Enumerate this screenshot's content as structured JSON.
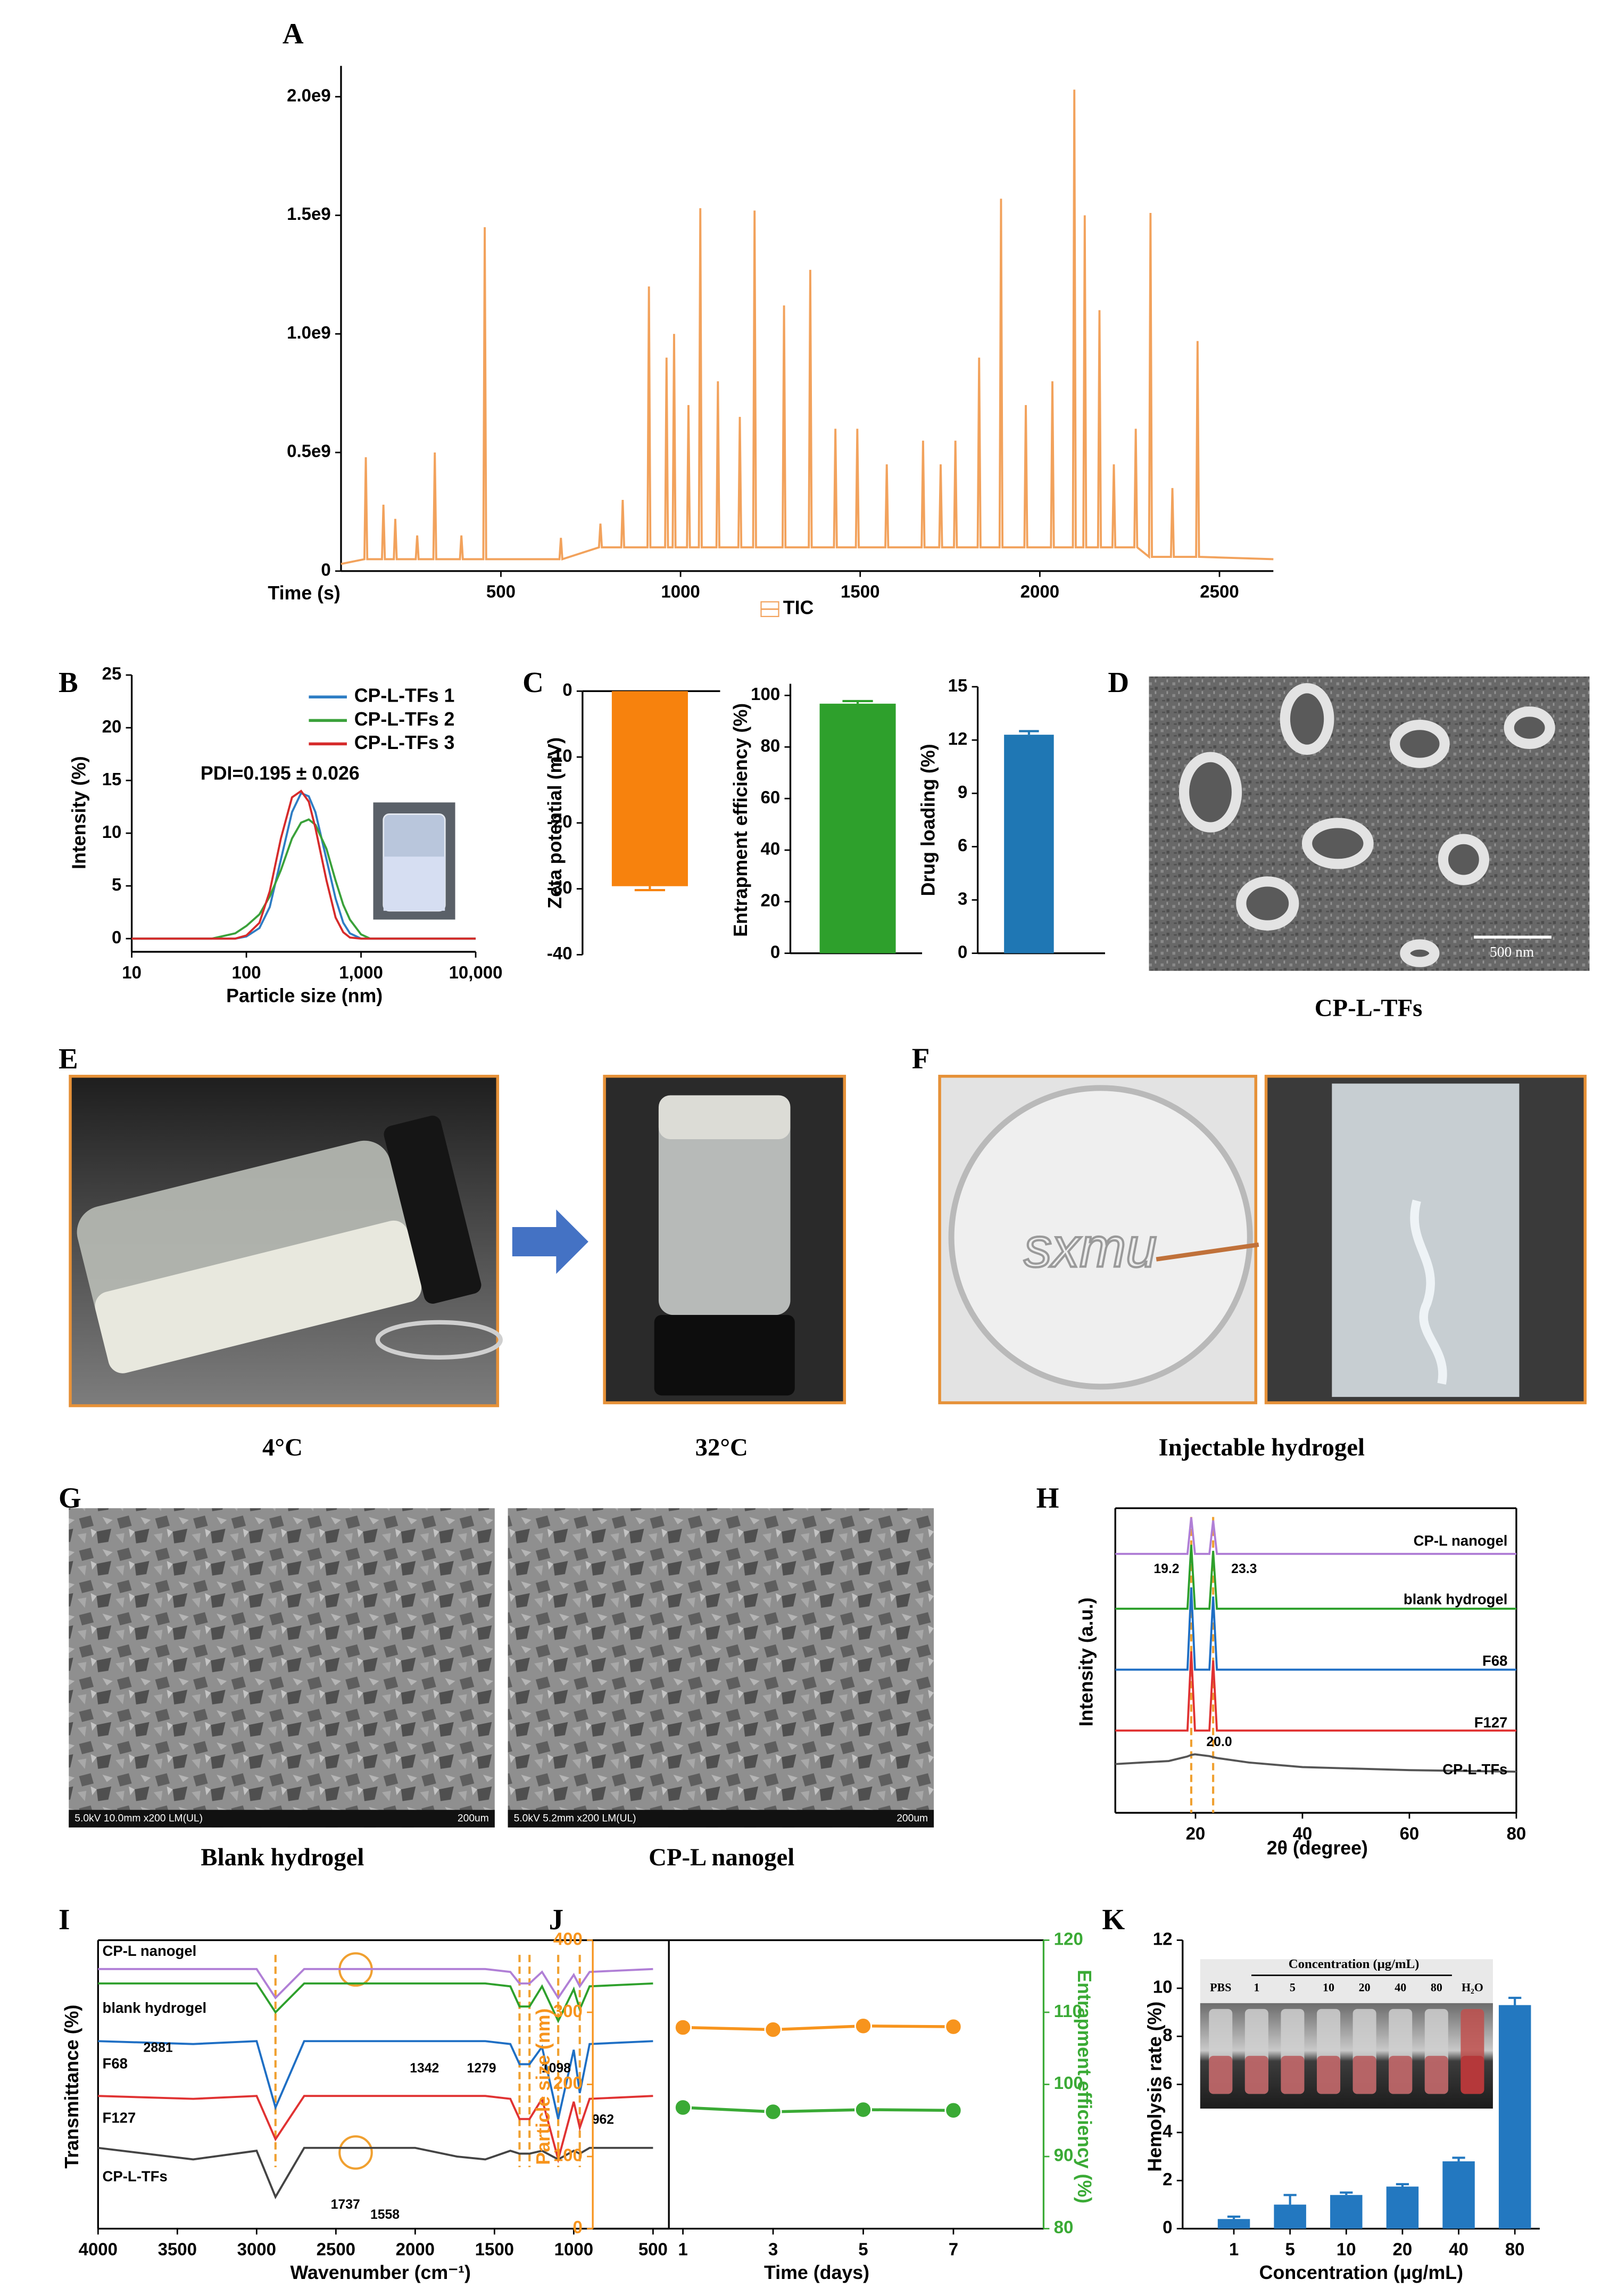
{
  "chart_data": [
    {
      "type": "line",
      "panel": "A",
      "x_label": "Time (s)",
      "legend": "lower center",
      "xlim": [
        55,
        2650
      ],
      "xticks": [
        500,
        1000,
        1500,
        2000,
        2500
      ],
      "ylim": [
        0,
        2130000000.0
      ],
      "yticks": [
        0,
        {
          "value": 500000000.0,
          "label": "0.5e9"
        },
        {
          "value": 1000000000.0,
          "label": "1.0e9"
        },
        {
          "value": 1500000000.0,
          "label": "1.5e9"
        },
        {
          "value": 2000000000.0,
          "label": "2.0e9"
        }
      ],
      "x": [
        55,
        120,
        124,
        128,
        169,
        173,
        177,
        202,
        206,
        210,
        263,
        267,
        271,
        312,
        316,
        320,
        386,
        390,
        394,
        451,
        455,
        459,
        663,
        667,
        671,
        773,
        777,
        781,
        835,
        839,
        843,
        908,
        912,
        916,
        957,
        961,
        965,
        978,
        982,
        986,
        1018,
        1022,
        1026,
        1051,
        1055,
        1059,
        1100,
        1104,
        1108,
        1161,
        1165,
        1169,
        1202,
        1206,
        1210,
        1284,
        1288,
        1292,
        1357,
        1361,
        1365,
        1427,
        1431,
        1435,
        1488,
        1492,
        1496,
        1570,
        1574,
        1578,
        1671,
        1675,
        1679,
        1720,
        1724,
        1728,
        1761,
        1765,
        1769,
        1827,
        1831,
        1835,
        1888,
        1892,
        1896,
        1957,
        1961,
        1965,
        2031,
        2035,
        2039,
        2092,
        2096,
        2100,
        2121,
        2125,
        2129,
        2162,
        2166,
        2170,
        2202,
        2206,
        2210,
        2263,
        2267,
        2271,
        2304,
        2308,
        2312,
        2365,
        2369,
        2373,
        2435,
        2439,
        2443,
        2650
      ],
      "series": [
        {
          "name": "TIC",
          "color": "#f2a25c",
          "values": [
            30000000.0,
            50000000.0,
            480000000.0,
            50000000.0,
            50000000.0,
            280000000.0,
            50000000.0,
            50000000.0,
            220000000.0,
            50000000.0,
            50000000.0,
            150000000.0,
            50000000.0,
            50000000.0,
            500000000.0,
            50000000.0,
            50000000.0,
            150000000.0,
            50000000.0,
            50000000.0,
            1450000000.0,
            50000000.0,
            50000000.0,
            140000000.0,
            50000000.0,
            100000000.0,
            200000000.0,
            100000000.0,
            100000000.0,
            300000000.0,
            100000000.0,
            100000000.0,
            1200000000.0,
            100000000.0,
            100000000.0,
            900000000.0,
            100000000.0,
            100000000.0,
            1000000000.0,
            100000000.0,
            100000000.0,
            700000000.0,
            100000000.0,
            100000000.0,
            1530000000.0,
            100000000.0,
            100000000.0,
            800000000.0,
            100000000.0,
            100000000.0,
            650000000.0,
            100000000.0,
            100000000.0,
            1520000000.0,
            100000000.0,
            100000000.0,
            1120000000.0,
            100000000.0,
            100000000.0,
            1270000000.0,
            100000000.0,
            100000000.0,
            600000000.0,
            100000000.0,
            100000000.0,
            600000000.0,
            100000000.0,
            100000000.0,
            450000000.0,
            100000000.0,
            100000000.0,
            550000000.0,
            100000000.0,
            100000000.0,
            450000000.0,
            100000000.0,
            100000000.0,
            550000000.0,
            100000000.0,
            100000000.0,
            900000000.0,
            100000000.0,
            100000000.0,
            1570000000.0,
            100000000.0,
            100000000.0,
            700000000.0,
            100000000.0,
            100000000.0,
            800000000.0,
            100000000.0,
            100000000.0,
            2030000000.0,
            100000000.0,
            100000000.0,
            1500000000.0,
            100000000.0,
            100000000.0,
            1100000000.0,
            100000000.0,
            100000000.0,
            450000000.0,
            100000000.0,
            100000000.0,
            600000000.0,
            100000000.0,
            60000000.0,
            1510000000.0,
            60000000.0,
            60000000.0,
            350000000.0,
            60000000.0,
            60000000.0,
            970000000.0,
            60000000.0,
            50000000.0
          ]
        }
      ]
    },
    {
      "type": "line",
      "panel": "B",
      "x_label": "Particle size (nm)",
      "y_label": "Intensity (%)",
      "xscale": "log",
      "legend": "upper right",
      "annotations": [
        "PDI=0.195 ± 0.026"
      ],
      "xlim": [
        10,
        10000
      ],
      "xticks": [
        10,
        100,
        {
          "value": 1000,
          "label": "1,000"
        },
        {
          "value": 10000,
          "label": "10,000"
        }
      ],
      "ylim": [
        -1.25,
        25
      ],
      "yticks": [
        0,
        5,
        10,
        15,
        20,
        25
      ],
      "x": [
        10,
        50,
        80,
        100,
        130,
        160,
        200,
        250,
        300,
        350,
        400,
        500,
        600,
        700,
        800,
        1000,
        1200,
        10000
      ],
      "series": [
        {
          "name": "CP-L-TFs 1",
          "color": "#2e7dc4",
          "values": [
            0,
            0,
            0,
            0.2,
            1,
            3,
            7.5,
            12,
            13.8,
            13.5,
            12,
            7.5,
            3.8,
            1.5,
            0.5,
            0,
            0,
            0
          ]
        },
        {
          "name": "CP-L-TFs 2",
          "color": "#3aa13a",
          "values": [
            0,
            0,
            0.5,
            1.2,
            2.3,
            4,
            6.5,
            9.5,
            11,
            11.3,
            10.8,
            8.5,
            5.5,
            3.2,
            1.8,
            0.4,
            0,
            0
          ]
        },
        {
          "name": "CP-L-TFs 3",
          "color": "#d62b2b",
          "values": [
            0,
            0,
            0,
            0.3,
            1.5,
            4.5,
            9.5,
            13.4,
            14,
            13,
            10.5,
            5.5,
            2,
            0.6,
            0.1,
            0,
            0,
            0
          ]
        }
      ]
    },
    {
      "type": "bar",
      "panel": "C",
      "y_label": "Zeta potential (mV)",
      "color": "#f7820d",
      "ylim": [
        -40,
        0
      ],
      "yticks": [
        0,
        -10,
        -20,
        -30,
        -40
      ],
      "values": [
        -29.6
      ],
      "errors": [
        0.6
      ]
    },
    {
      "type": "bar",
      "y_label": "Entrapment efficiency (%)",
      "color": "#2ea02c",
      "ylim": [
        0,
        104.5
      ],
      "yticks": [
        0,
        20,
        40,
        60,
        80,
        100
      ],
      "values": [
        96.8
      ],
      "errors": [
        1
      ]
    },
    {
      "type": "bar",
      "y_label": "Drug loading (%)",
      "color": "#1f77b4",
      "ylim": [
        0,
        15
      ],
      "yticks": [
        0,
        3,
        6,
        9,
        12,
        15
      ],
      "values": [
        12.3
      ],
      "errors": [
        0.2
      ]
    },
    {
      "type": "line",
      "panel": "H",
      "x_label": "2θ (degree)",
      "y_label": "Intensity (a.u.)",
      "legend": "direct",
      "annotations": [
        "19.2",
        "23.3",
        "20.0"
      ],
      "reference_lines": [
        19.2,
        23.3
      ],
      "reference_color": "#f0a030",
      "xlim": [
        5,
        80
      ],
      "xticks": [
        20,
        40,
        60,
        80
      ],
      "ylim": [
        0,
        100
      ],
      "x": [
        5,
        15,
        18.5,
        19.2,
        19.9,
        22.6,
        23.3,
        24,
        30,
        40,
        60,
        80
      ],
      "series": [
        {
          "name": "CP-L nanogel",
          "color": "#b07fd6",
          "values": [
            85,
            85,
            85,
            97,
            85,
            85,
            96,
            85,
            85,
            85,
            85,
            85
          ]
        },
        {
          "name": "blank hydrogel",
          "color": "#2ea02c",
          "values": [
            67,
            67,
            67,
            88,
            67,
            67,
            86,
            67,
            67,
            67,
            67,
            67
          ]
        },
        {
          "name": "F68",
          "color": "#1f6fc4",
          "values": [
            47,
            47,
            47,
            74,
            47,
            47,
            71,
            47,
            47,
            47,
            47,
            47
          ]
        },
        {
          "name": "F127",
          "color": "#e03232",
          "values": [
            27,
            27,
            27,
            53,
            27,
            27,
            50,
            27,
            27,
            27,
            27,
            27
          ]
        },
        {
          "name": "CP-L-TFs",
          "color": "#555555",
          "values": [
            16,
            17,
            18.5,
            19,
            19.2,
            18.6,
            18.3,
            18,
            16.5,
            15,
            14,
            13.5
          ]
        }
      ]
    },
    {
      "type": "line",
      "panel": "I",
      "x_label": "Wavenumber (cm⁻¹)",
      "y_label": "Transmittance (%)",
      "legend": "direct",
      "annotations": [
        "2881",
        "1342",
        "1279",
        "1098",
        "962",
        "1737",
        "1558"
      ],
      "reference_lines": [
        2881,
        1342,
        1279,
        1098,
        962
      ],
      "reference_color": "#f0a030",
      "xlim": [
        4000,
        400
      ],
      "xticks": [
        4000,
        3500,
        3000,
        2500,
        2000,
        1500,
        1000,
        500
      ],
      "ylim": [
        0,
        100
      ],
      "x": [
        4000,
        3400,
        3000,
        2881,
        2700,
        2000,
        1737,
        1558,
        1400,
        1342,
        1279,
        1200,
        1098,
        1000,
        962,
        900,
        500
      ],
      "series": [
        {
          "name": "CP-L nanogel",
          "color": "#b07fd6",
          "values": [
            90,
            90,
            90,
            80,
            90,
            90,
            90,
            90,
            89,
            85,
            85,
            89,
            80,
            88,
            84,
            89,
            90
          ]
        },
        {
          "name": "blank hydrogel",
          "color": "#2ea02c",
          "values": [
            85,
            85,
            85,
            75,
            85,
            85,
            85,
            85,
            84,
            77,
            77,
            84,
            72,
            83,
            76,
            84,
            85
          ]
        },
        {
          "name": "F68",
          "color": "#1f6fc4",
          "values": [
            65,
            64,
            65,
            42,
            65,
            65,
            65,
            65,
            64,
            57,
            57,
            63,
            38,
            62,
            47,
            64,
            65
          ]
        },
        {
          "name": "F127",
          "color": "#e03232",
          "values": [
            46,
            45,
            46,
            31,
            46,
            46,
            46,
            46,
            45,
            38,
            38,
            45,
            24,
            44,
            35,
            45,
            46
          ]
        },
        {
          "name": "CP-L-TFs",
          "color": "#444444",
          "values": [
            28,
            24,
            27,
            11,
            28,
            28,
            25,
            24,
            27,
            26,
            26,
            27,
            24,
            27,
            26,
            28,
            28
          ]
        }
      ]
    },
    {
      "type": "line",
      "panel": "J",
      "x_label": "Time (days)",
      "y_label": "Particle size (nm)",
      "y2_label": "Entrapment efficiency (%)",
      "markers": true,
      "xlim": [
        -1,
        9
      ],
      "xticks": [
        1,
        3,
        5,
        7
      ],
      "ylim": [
        0,
        400
      ],
      "yticks": [
        0,
        100,
        200,
        300,
        400
      ],
      "y2lim": [
        80,
        120
      ],
      "y2ticks": [
        80,
        90,
        100,
        110,
        120
      ],
      "x": [
        1,
        3,
        5,
        7
      ],
      "series": [
        {
          "color": "#f7941d",
          "values": [
            279,
            276,
            281,
            280
          ]
        },
        {
          "color": "#3aaa35",
          "axis": "y2",
          "values": [
            96.8,
            96.2,
            96.5,
            96.4
          ]
        }
      ]
    },
    {
      "type": "bar",
      "panel": "K",
      "x_label": "Concentration (μg/mL)",
      "y_label": "Hemolysis rate (%)",
      "color": "#2378c0",
      "categories": [
        "1",
        "5",
        "10",
        "20",
        "40",
        "80"
      ],
      "values": [
        0.4,
        1.0,
        1.4,
        1.75,
        2.8,
        9.3
      ],
      "errors": [
        0.1,
        0.4,
        0.1,
        0.1,
        0.15,
        0.3
      ],
      "ylim": [
        0,
        12
      ],
      "yticks": [
        0,
        2,
        4,
        6,
        8,
        10,
        12
      ],
      "inset": {
        "title": "Concentration (μg/mL)",
        "labels": [
          "PBS",
          "1",
          "5",
          "10",
          "20",
          "40",
          "80",
          "H₂O"
        ]
      }
    }
  ],
  "figures": [
    {
      "panel": "D",
      "caption": "CP-L-TFs",
      "scale_bar": "500 nm"
    },
    {
      "panel": "E",
      "captions": [
        "4°C",
        "32°C"
      ]
    },
    {
      "panel": "F",
      "caption": "Injectable hydrogel",
      "inscription": "sxmu"
    },
    {
      "panel": "G",
      "captions": [
        "Blank hydrogel",
        "CP-L nanogel"
      ],
      "sem_info": [
        {
          "left": "5.0kV 10.0mm x200 LM(UL)",
          "right": "200um"
        },
        {
          "left": "5.0kV 5.2mm x200 LM(UL)",
          "right": "200um"
        }
      ]
    }
  ]
}
